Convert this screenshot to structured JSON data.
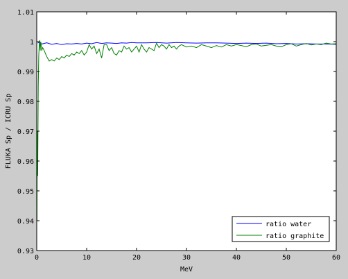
{
  "chart_data": {
    "type": "line",
    "xlabel": "MeV",
    "ylabel": "FLUKA Sp / ICRU Sp",
    "xlim": [
      0,
      60
    ],
    "ylim": [
      0.93,
      1.01
    ],
    "xticks": [
      0,
      10,
      20,
      30,
      40,
      50,
      60
    ],
    "yticks": [
      0.93,
      0.94,
      0.95,
      0.96,
      0.97,
      0.98,
      0.99,
      1,
      1.01
    ],
    "xtick_labels": [
      "0",
      "10",
      "20",
      "30",
      "40",
      "50",
      "60"
    ],
    "ytick_labels": [
      "0.93",
      "0.94",
      "0.95",
      "0.96",
      "0.97",
      "0.98",
      "0.99",
      "1",
      "1.01"
    ],
    "grid": false,
    "legend_position": "bottom-right",
    "series": [
      {
        "name": "ratio water",
        "color": "#0000ff",
        "x": [
          0.2,
          0.5,
          1,
          2,
          3,
          4,
          5,
          6,
          7,
          8,
          9,
          10,
          11,
          12,
          13,
          14,
          15,
          16,
          17,
          18,
          19,
          20,
          22,
          24,
          26,
          28,
          30,
          32,
          34,
          36,
          38,
          40,
          42,
          44,
          46,
          48,
          50,
          52,
          54,
          56,
          58,
          60
        ],
        "y": [
          0.9995,
          0.9998,
          0.9992,
          0.9996,
          0.9991,
          0.9994,
          0.999,
          0.9993,
          0.9992,
          0.9994,
          0.9992,
          0.9995,
          0.9993,
          0.9997,
          0.9994,
          0.9996,
          0.9995,
          0.9994,
          0.9996,
          0.9995,
          0.9997,
          0.9996,
          0.9996,
          0.9997,
          0.9995,
          0.9997,
          0.9996,
          0.9995,
          0.9996,
          0.9996,
          0.9995,
          0.9994,
          0.9995,
          0.9994,
          0.9995,
          0.9993,
          0.9994,
          0.9992,
          0.9993,
          0.9992,
          0.9992,
          0.9991
        ]
      },
      {
        "name": "ratio graphite",
        "color": "#008000",
        "x": [
          0.05,
          0.1,
          0.2,
          0.3,
          0.4,
          0.5,
          0.6,
          0.7,
          0.8,
          1,
          1.2,
          1.5,
          2,
          2.5,
          3,
          3.5,
          4,
          4.5,
          5,
          5.5,
          6,
          6.5,
          7,
          7.5,
          8,
          8.5,
          9,
          9.5,
          10,
          10.5,
          11,
          11.5,
          12,
          12.5,
          13,
          13.5,
          14,
          14.5,
          15,
          15.5,
          16,
          16.5,
          17,
          17.5,
          18,
          18.5,
          19,
          19.5,
          20,
          20.5,
          21,
          21.5,
          22,
          22.5,
          23,
          23.5,
          24,
          24.5,
          25,
          25.5,
          26,
          26.5,
          27,
          27.5,
          28,
          28.5,
          29,
          30,
          31,
          32,
          33,
          34,
          35,
          36,
          37,
          38,
          39,
          40,
          41,
          42,
          43,
          44,
          45,
          46,
          47,
          48,
          49,
          50,
          51,
          52,
          53,
          54,
          55,
          56,
          57,
          58,
          59,
          60
        ],
        "y": [
          0.94,
          0.97,
          0.955,
          0.985,
          0.995,
          0.999,
          1.0005,
          0.997,
          1.0,
          0.997,
          0.998,
          0.997,
          0.995,
          0.9935,
          0.994,
          0.9935,
          0.9945,
          0.994,
          0.995,
          0.9945,
          0.9955,
          0.995,
          0.996,
          0.9955,
          0.9965,
          0.996,
          0.997,
          0.9955,
          0.9965,
          0.999,
          0.9975,
          0.9985,
          0.996,
          0.9975,
          0.9945,
          0.999,
          0.999,
          0.997,
          0.998,
          0.996,
          0.9955,
          0.997,
          0.9965,
          0.9985,
          0.9975,
          0.998,
          0.9965,
          0.9975,
          0.9985,
          0.9965,
          0.999,
          0.9975,
          0.9965,
          0.998,
          0.9975,
          0.997,
          0.9995,
          0.998,
          0.999,
          0.9985,
          0.9975,
          0.999,
          0.998,
          0.9985,
          0.9975,
          0.9985,
          0.999,
          0.9982,
          0.9985,
          0.998,
          0.999,
          0.9985,
          0.998,
          0.9987,
          0.9982,
          0.999,
          0.9985,
          0.999,
          0.9987,
          0.9983,
          0.999,
          0.9992,
          0.9985,
          0.9988,
          0.999,
          0.9985,
          0.9983,
          0.999,
          0.9993,
          0.9985,
          0.999,
          0.9994,
          0.9989,
          0.9992,
          0.999,
          0.9995,
          0.9992,
          0.9993
        ]
      }
    ]
  }
}
